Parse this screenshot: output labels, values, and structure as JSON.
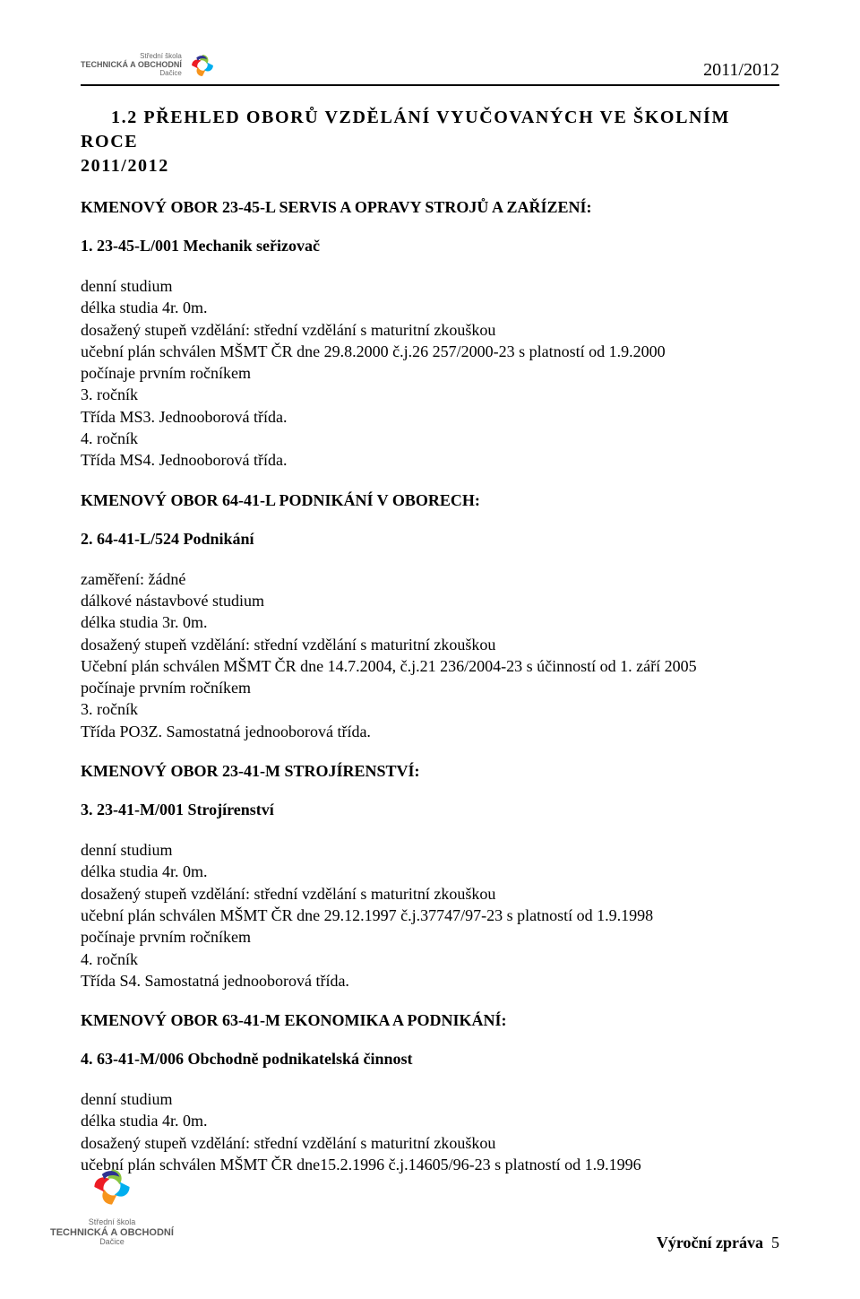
{
  "header": {
    "schoolLine1": "Střední škola",
    "schoolLine2": "TECHNICKÁ A OBCHODNÍ",
    "schoolLine3": "Dačice",
    "year": "2011/2012",
    "logoColors": [
      "#8bc53f",
      "#00aeef",
      "#f7941d",
      "#ed1c24",
      "#2e3192"
    ]
  },
  "title": {
    "number": "1.2",
    "text": "PŘEHLED OBORŮ VZDĚLÁNÍ VYUČOVANÝCH VE ŠKOLNÍM ROCE",
    "year": "2011/2012"
  },
  "blocks": [
    {
      "kmen": "KMENOVÝ OBOR 23-45-L SERVIS A OPRAVY STROJŮ A ZAŘÍZENÍ:",
      "itemTitle": "1. 23-45-L/001 Mechanik seřizovač",
      "lines": [
        "denní studium",
        "délka studia 4r. 0m.",
        "dosažený stupeň vzdělání: střední vzdělání s maturitní zkouškou",
        "učební plán schválen MŠMT ČR dne 29.8.2000 č.j.26 257/2000-23 s platností od 1.9.2000",
        "počínaje prvním ročníkem",
        "3. ročník",
        "Třída MS3. Jednooborová třída.",
        "4. ročník",
        "Třída MS4. Jednooborová třída."
      ]
    },
    {
      "kmen": "KMENOVÝ OBOR 64-41-L PODNIKÁNÍ V OBORECH:",
      "itemTitle": "2. 64-41-L/524 Podnikání",
      "lines": [
        "zaměření: žádné",
        "dálkové nástavbové studium",
        "délka studia 3r. 0m.",
        "dosažený stupeň vzdělání: střední vzdělání s maturitní zkouškou",
        "Učební plán schválen MŠMT ČR dne 14.7.2004, č.j.21 236/2004-23 s účinností od 1. září 2005",
        "počínaje prvním ročníkem",
        "3. ročník",
        "Třída PO3Z. Samostatná jednooborová třída."
      ]
    },
    {
      "kmen": "KMENOVÝ OBOR 23-41-M STROJÍRENSTVÍ:",
      "itemTitle": "3. 23-41-M/001 Strojírenství",
      "lines": [
        "denní studium",
        "délka studia 4r. 0m.",
        "dosažený stupeň vzdělání: střední vzdělání s maturitní zkouškou",
        "učební plán schválen MŠMT ČR dne 29.12.1997 č.j.37747/97-23 s platností od 1.9.1998",
        "počínaje prvním ročníkem",
        "4. ročník",
        "Třída S4. Samostatná jednooborová třída."
      ]
    },
    {
      "kmen": "KMENOVÝ OBOR 63-41-M EKONOMIKA A PODNIKÁNÍ:",
      "itemTitle": "4. 63-41-M/006 Obchodně podnikatelská činnost",
      "lines": [
        "denní studium",
        "délka studia 4r. 0m.",
        "dosažený stupeň vzdělání: střední vzdělání s maturitní zkouškou",
        "učební plán schválen MŠMT ČR dne15.2.1996 č.j.14605/96-23 s platností od 1.9.1996"
      ]
    }
  ],
  "footer": {
    "reportLabel": "Výroční zpráva",
    "pageNum": "5"
  }
}
